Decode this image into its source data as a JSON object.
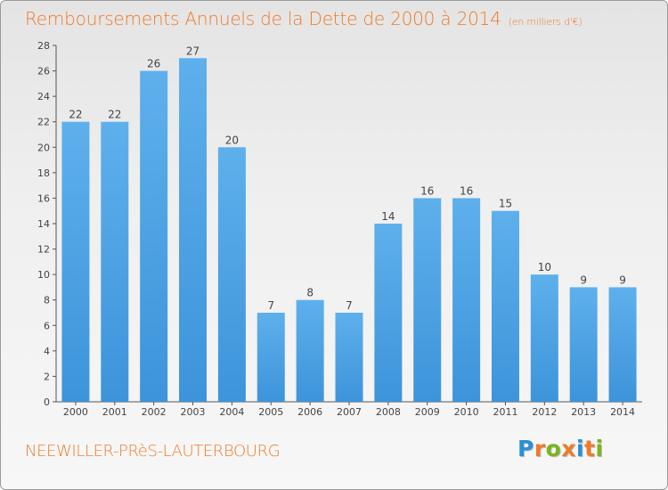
{
  "chart_data": {
    "type": "bar",
    "title": "Remboursements Annuels de la Dette de 2000 à 2014",
    "subtitle": "(en milliers d'€)",
    "categories": [
      "2000",
      "2001",
      "2002",
      "2003",
      "2004",
      "2005",
      "2006",
      "2007",
      "2008",
      "2009",
      "2010",
      "2011",
      "2012",
      "2013",
      "2014"
    ],
    "values": [
      22,
      22,
      26,
      27,
      20,
      7,
      8,
      7,
      14,
      16,
      16,
      15,
      10,
      9,
      9
    ],
    "ylim": [
      0,
      28
    ],
    "yticks": [
      0,
      2,
      4,
      6,
      8,
      10,
      12,
      14,
      16,
      18,
      20,
      22,
      24,
      26,
      28
    ],
    "grid": false,
    "bar_color": "#3d94da",
    "bar_color_light": "#5eb0ec"
  },
  "footer": {
    "commune": "NEEWILLER-PRèS-LAUTERBOURG",
    "logo": [
      "P",
      "r",
      "o",
      "x",
      "i",
      "t",
      "i"
    ],
    "logo_colors": [
      "#2a8fd6",
      "#f07a28",
      "#7ab51d",
      "#f07a28",
      "#2a8fd6",
      "#f07a28",
      "#7ab51d"
    ]
  },
  "colors": {
    "accent": "#f07a28",
    "axis": "#555555"
  }
}
